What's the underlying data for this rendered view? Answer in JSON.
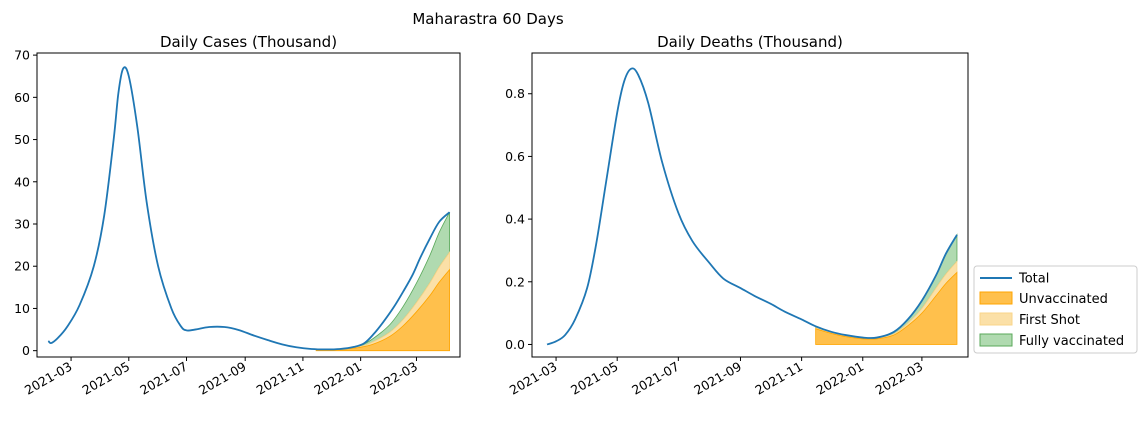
{
  "figure": {
    "suptitle": "Maharastra 60 Days"
  },
  "colors": {
    "total": "#1f77b4",
    "unvaccinated": "#ffa500",
    "first_shot": "#fad58a",
    "fully_vaccinated": "#8fcb8f"
  },
  "legend": {
    "placement": "right-center",
    "entries": [
      "Total",
      "Unvaccinated",
      "First Shot",
      "Fully vaccinated"
    ]
  },
  "chart_data": [
    {
      "type": "area",
      "title": "Daily Cases (Thousand)",
      "xlabel": "",
      "ylabel": "",
      "x_ticks": [
        "2021-03",
        "2021-05",
        "2021-07",
        "2021-09",
        "2021-11",
        "2022-01",
        "2022-03"
      ],
      "y_ticks": [
        0,
        10,
        20,
        30,
        40,
        50,
        60,
        70
      ],
      "xlim": [
        "2021-01-24",
        "2022-04-16"
      ],
      "ylim": [
        -1.5,
        70.5
      ],
      "grid": false,
      "series": [
        {
          "name": "Total",
          "kind": "line",
          "x": [
            "2021-02-05",
            "2021-02-08",
            "2021-02-15",
            "2021-02-25",
            "2021-03-10",
            "2021-03-25",
            "2021-04-05",
            "2021-04-15",
            "2021-04-20",
            "2021-04-25",
            "2021-05-01",
            "2021-05-10",
            "2021-05-20",
            "2021-06-01",
            "2021-06-15",
            "2021-06-25",
            "2021-07-01",
            "2021-07-10",
            "2021-07-25",
            "2021-08-10",
            "2021-08-25",
            "2021-09-10",
            "2021-09-25",
            "2021-10-10",
            "2021-10-25",
            "2021-11-10",
            "2021-11-25",
            "2021-12-10",
            "2021-12-25",
            "2022-01-05",
            "2022-01-15",
            "2022-01-25",
            "2022-02-05",
            "2022-02-15",
            "2022-02-25",
            "2022-03-05",
            "2022-03-15",
            "2022-03-25",
            "2022-04-05"
          ],
          "values": [
            2.3,
            1.8,
            3.0,
            5.7,
            10.8,
            20.0,
            32.0,
            50.0,
            61.0,
            66.8,
            65.0,
            53.0,
            35.0,
            20.0,
            10.0,
            5.8,
            4.8,
            5.0,
            5.6,
            5.6,
            4.9,
            3.6,
            2.5,
            1.5,
            0.8,
            0.4,
            0.3,
            0.4,
            0.9,
            1.8,
            4.0,
            6.8,
            10.3,
            14.0,
            18.0,
            22.0,
            26.5,
            30.5,
            32.8
          ]
        },
        {
          "name": "Unvaccinated",
          "kind": "area",
          "x": [
            "2021-11-15",
            "2021-12-01",
            "2021-12-15",
            "2022-01-01",
            "2022-01-15",
            "2022-02-01",
            "2022-02-15",
            "2022-03-01",
            "2022-03-15",
            "2022-03-25",
            "2022-04-05"
          ],
          "values": [
            0.3,
            0.3,
            0.4,
            0.8,
            1.6,
            3.4,
            5.9,
            9.2,
            13.0,
            16.2,
            19.2
          ]
        },
        {
          "name": "First Shot",
          "kind": "area",
          "x": [
            "2021-11-15",
            "2021-12-01",
            "2021-12-15",
            "2022-01-01",
            "2022-01-15",
            "2022-02-01",
            "2022-02-15",
            "2022-03-01",
            "2022-03-15",
            "2022-03-25",
            "2022-04-05"
          ],
          "values": [
            0.3,
            0.3,
            0.4,
            1.0,
            2.2,
            4.4,
            7.4,
            11.4,
            16.0,
            19.8,
            23.3
          ]
        },
        {
          "name": "Fully vaccinated",
          "kind": "area",
          "x": [
            "2021-11-15",
            "2021-12-01",
            "2021-12-15",
            "2022-01-01",
            "2022-01-15",
            "2022-02-01",
            "2022-02-15",
            "2022-03-01",
            "2022-03-15",
            "2022-03-25",
            "2022-04-05"
          ],
          "values": [
            0.4,
            0.3,
            0.4,
            1.2,
            3.0,
            6.2,
            10.5,
            16.0,
            22.5,
            28.0,
            32.8
          ]
        }
      ]
    },
    {
      "type": "area",
      "title": "Daily Deaths (Thousand)",
      "xlabel": "",
      "ylabel": "",
      "x_ticks": [
        "2021-03",
        "2021-05",
        "2021-07",
        "2021-09",
        "2021-11",
        "2022-01",
        "2022-03"
      ],
      "y_ticks": [
        0.0,
        0.2,
        0.4,
        0.6,
        0.8
      ],
      "y_tick_labels": [
        "0.0",
        "0.2",
        "0.4",
        "0.6",
        "0.8"
      ],
      "xlim": [
        "2021-02-05",
        "2022-04-16"
      ],
      "ylim": [
        -0.04,
        0.93
      ],
      "grid": false,
      "series": [
        {
          "name": "Total",
          "kind": "line",
          "x": [
            "2021-02-20",
            "2021-03-01",
            "2021-03-10",
            "2021-03-20",
            "2021-04-01",
            "2021-04-10",
            "2021-04-20",
            "2021-05-01",
            "2021-05-08",
            "2021-05-15",
            "2021-05-22",
            "2021-06-01",
            "2021-06-15",
            "2021-07-01",
            "2021-07-15",
            "2021-08-01",
            "2021-08-15",
            "2021-09-01",
            "2021-09-15",
            "2021-10-01",
            "2021-10-15",
            "2021-11-01",
            "2021-11-15",
            "2021-12-01",
            "2021-12-15",
            "2022-01-01",
            "2022-01-15",
            "2022-02-01",
            "2022-02-15",
            "2022-03-01",
            "2022-03-15",
            "2022-03-25",
            "2022-04-05"
          ],
          "values": [
            0.0,
            0.01,
            0.03,
            0.08,
            0.18,
            0.32,
            0.52,
            0.74,
            0.84,
            0.88,
            0.86,
            0.77,
            0.58,
            0.42,
            0.33,
            0.26,
            0.21,
            0.18,
            0.155,
            0.13,
            0.105,
            0.08,
            0.058,
            0.04,
            0.03,
            0.022,
            0.022,
            0.04,
            0.08,
            0.14,
            0.22,
            0.29,
            0.35
          ]
        },
        {
          "name": "Unvaccinated",
          "kind": "area",
          "x": [
            "2021-11-15",
            "2021-12-01",
            "2021-12-15",
            "2022-01-01",
            "2022-01-15",
            "2022-02-01",
            "2022-02-15",
            "2022-03-01",
            "2022-03-15",
            "2022-03-25",
            "2022-04-05"
          ],
          "values": [
            0.05,
            0.035,
            0.025,
            0.018,
            0.018,
            0.03,
            0.06,
            0.1,
            0.155,
            0.195,
            0.23
          ]
        },
        {
          "name": "First Shot",
          "kind": "area",
          "x": [
            "2021-11-15",
            "2021-12-01",
            "2021-12-15",
            "2022-01-01",
            "2022-01-15",
            "2022-02-01",
            "2022-02-15",
            "2022-03-01",
            "2022-03-15",
            "2022-03-25",
            "2022-04-05"
          ],
          "values": [
            0.053,
            0.037,
            0.027,
            0.02,
            0.02,
            0.034,
            0.068,
            0.115,
            0.18,
            0.225,
            0.265
          ]
        },
        {
          "name": "Fully vaccinated",
          "kind": "area",
          "x": [
            "2021-11-15",
            "2021-12-01",
            "2021-12-15",
            "2022-01-01",
            "2022-01-15",
            "2022-02-01",
            "2022-02-15",
            "2022-03-01",
            "2022-03-15",
            "2022-03-25",
            "2022-04-05"
          ],
          "values": [
            0.058,
            0.04,
            0.03,
            0.022,
            0.022,
            0.04,
            0.08,
            0.14,
            0.22,
            0.29,
            0.35
          ]
        }
      ]
    }
  ]
}
